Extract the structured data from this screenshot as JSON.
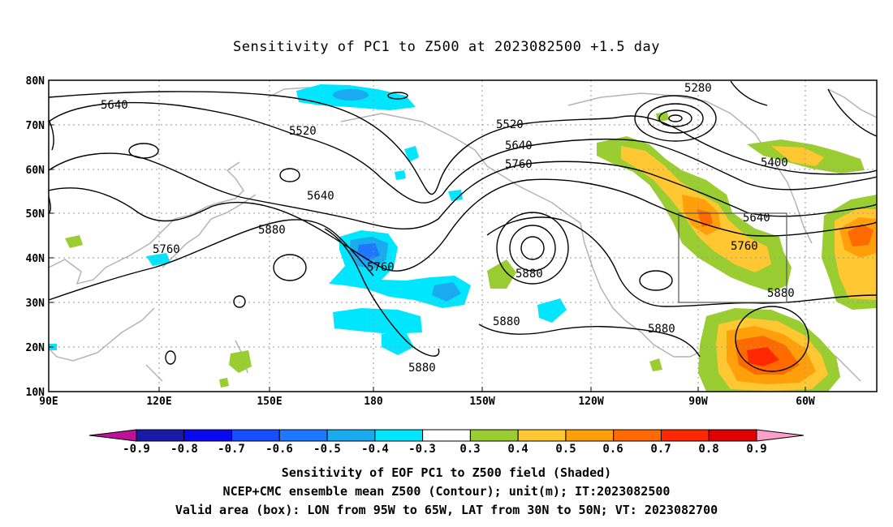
{
  "title": "Sensitivity of PC1 to Z500 at 2023082500 +1.5 day",
  "lat_labels": [
    "80N",
    "70N",
    "60N",
    "50N",
    "40N",
    "30N",
    "20N",
    "10N"
  ],
  "lon_labels": [
    "90E",
    "120E",
    "150E",
    "180",
    "150W",
    "120W",
    "90W",
    "60W"
  ],
  "contour_labels": [
    "5640",
    "5520",
    "5640",
    "5880",
    "5760",
    "5520",
    "5640",
    "5760",
    "5760",
    "5880",
    "5280",
    "5400",
    "5640",
    "5760",
    "5880",
    "5880",
    "5880",
    "5880"
  ],
  "colorbar": {
    "labels": [
      "-0.9",
      "-0.8",
      "-0.7",
      "-0.6",
      "-0.5",
      "-0.4",
      "-0.3",
      "0.3",
      "0.4",
      "0.5",
      "0.6",
      "0.7",
      "0.8",
      "0.9"
    ],
    "colors": [
      "#1a1aa8",
      "#0a0af0",
      "#1450ff",
      "#1e78ff",
      "#1aaaf0",
      "#00e6ff",
      "#ffffff",
      "#9acd32",
      "#ffc832",
      "#ffa00a",
      "#ff6a00",
      "#ff2800",
      "#e00000"
    ],
    "low_end_color": "#c0109a",
    "high_end_color": "#ff9ec8"
  },
  "captions": [
    "Sensitivity of EOF PC1 to Z500 field (Shaded)",
    "NCEP+CMC ensemble mean Z500 (Contour); unit(m); IT:2023082500",
    "Valid area (box): LON from 95W to 65W, LAT from 30N to 50N; VT: 2023082700"
  ]
}
